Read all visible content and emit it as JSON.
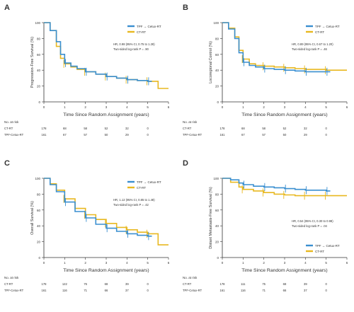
{
  "colors": {
    "tpf": "#3a8fd0",
    "ct": "#e8b820",
    "axis": "#333333",
    "text": "#333333"
  },
  "chart_data": [
    {
      "type": "line",
      "panel_label": "A",
      "ylabel": "Progression-Free Survival (%)",
      "xlabel": "Time Since Random Assignment (years)",
      "xlim": [
        0,
        6
      ],
      "ylim": [
        0,
        100
      ],
      "x_ticks": [
        0,
        1,
        2,
        3,
        4,
        5,
        6
      ],
      "y_ticks": [
        0,
        20,
        40,
        60,
        80,
        100
      ],
      "legend": [
        "TPF → Cetux-RT",
        "CT-RT"
      ],
      "legend_position": "top-right",
      "annotation": [
        "HR, 0.98 (95% CI, 0.75 to 1.28)",
        "Two-sided log-rank P = .90"
      ],
      "series": [
        {
          "name": "TPF → Cetux-RT",
          "x": [
            0,
            0.3,
            0.6,
            0.8,
            1.0,
            1.3,
            1.6,
            2.0,
            2.5,
            3.0,
            3.5,
            4.0,
            4.5,
            5.0,
            5.2
          ],
          "y": [
            100,
            90,
            76,
            60,
            49,
            45,
            42,
            38,
            35,
            32,
            30,
            28,
            27,
            26,
            26
          ]
        },
        {
          "name": "CT-RT",
          "x": [
            0,
            0.3,
            0.6,
            0.8,
            1.0,
            1.3,
            1.6,
            2.0,
            2.5,
            3.0,
            3.5,
            4.0,
            4.5,
            5.0,
            5.5,
            6.0
          ],
          "y": [
            100,
            90,
            70,
            55,
            48,
            44,
            41,
            38,
            35,
            32,
            30,
            28,
            27,
            26,
            17,
            17
          ]
        }
      ],
      "at_risk": {
        "header": "No. at risk",
        "rows": [
          {
            "label": "CT-RT",
            "values": [
              "178",
              "68",
              "58",
              "52",
              "32",
              "0"
            ]
          },
          {
            "label": "TPF-Cetux-RT",
            "values": [
              "161",
              "67",
              "57",
              "50",
              "29",
              "0"
            ]
          }
        ]
      }
    },
    {
      "type": "line",
      "panel_label": "B",
      "ylabel": "Locoregional Control (%)",
      "xlabel": "Time Since Random Assignment (years)",
      "xlim": [
        0,
        6
      ],
      "ylim": [
        0,
        100
      ],
      "x_ticks": [
        0,
        1,
        2,
        3,
        4,
        5,
        6
      ],
      "y_ticks": [
        0,
        20,
        40,
        60,
        80,
        100
      ],
      "legend": [
        "TPF → Cetux-RT",
        "CT-RT"
      ],
      "legend_position": "top-right",
      "annotation": [
        "HR, 0.89 (95% CI, 0.67 to 1.20)",
        "Two-sided log-rank P = .46"
      ],
      "series": [
        {
          "name": "TPF → Cetux-RT",
          "x": [
            0,
            0.3,
            0.6,
            0.8,
            1.0,
            1.3,
            1.6,
            2.0,
            2.5,
            3.0,
            3.5,
            4.0,
            4.5,
            5.0,
            5.2
          ],
          "y": [
            100,
            92,
            80,
            62,
            50,
            46,
            44,
            42,
            41,
            40,
            39,
            38,
            38,
            38,
            38
          ]
        },
        {
          "name": "CT-RT",
          "x": [
            0,
            0.3,
            0.6,
            0.8,
            1.0,
            1.3,
            1.6,
            2.0,
            2.5,
            3.0,
            3.5,
            4.0,
            4.5,
            5.0,
            5.5,
            6.0
          ],
          "y": [
            100,
            93,
            82,
            65,
            54,
            48,
            46,
            45,
            44,
            43,
            42,
            41,
            41,
            40,
            40,
            40
          ]
        }
      ],
      "at_risk": {
        "header": "No. at risk",
        "rows": [
          {
            "label": "CT-RT",
            "values": [
              "178",
              "68",
              "58",
              "52",
              "32",
              "0"
            ]
          },
          {
            "label": "TPF-Cetux-RT",
            "values": [
              "161",
              "67",
              "57",
              "50",
              "29",
              "0"
            ]
          }
        ]
      }
    },
    {
      "type": "line",
      "panel_label": "C",
      "ylabel": "Overall Survival (%)",
      "xlabel": "Time Since Random Assignment (years)",
      "xlim": [
        0,
        6
      ],
      "ylim": [
        0,
        100
      ],
      "x_ticks": [
        0,
        1,
        2,
        3,
        4,
        5,
        6
      ],
      "y_ticks": [
        0,
        20,
        40,
        60,
        80,
        100
      ],
      "legend": [
        "TPF → Cetux-RT",
        "CT-RT"
      ],
      "legend_position": "top-right",
      "annotation": [
        "HR, 1.12 (95% CI, 0.85 to 1.48)",
        "Two-sided log-rank P = .42"
      ],
      "series": [
        {
          "name": "TPF → Cetux-RT",
          "x": [
            0,
            0.3,
            0.6,
            1.0,
            1.5,
            2.0,
            2.5,
            3.0,
            3.5,
            4.0,
            4.5,
            5.0,
            5.2
          ],
          "y": [
            100,
            92,
            83,
            70,
            58,
            50,
            42,
            37,
            33,
            30,
            28,
            27,
            27
          ]
        },
        {
          "name": "CT-RT",
          "x": [
            0,
            0.3,
            0.6,
            1.0,
            1.5,
            2.0,
            2.5,
            3.0,
            3.5,
            4.0,
            4.5,
            5.0,
            5.5,
            6.0
          ],
          "y": [
            100,
            93,
            85,
            74,
            62,
            54,
            48,
            43,
            38,
            35,
            32,
            30,
            16,
            16
          ]
        }
      ],
      "at_risk": {
        "header": "No. at risk",
        "rows": [
          {
            "label": "CT-RT",
            "values": [
              "178",
              "122",
              "76",
              "68",
              "39",
              "0"
            ]
          },
          {
            "label": "TPF-Cetux-RT",
            "values": [
              "161",
              "116",
              "71",
              "66",
              "37",
              "0"
            ]
          }
        ]
      }
    },
    {
      "type": "line",
      "panel_label": "D",
      "ylabel": "Distant Metastasis-Free Survival (%)",
      "xlabel": "Time Since Random Assignment (years)",
      "xlim": [
        0,
        6
      ],
      "ylim": [
        0,
        100
      ],
      "x_ticks": [
        0,
        1,
        2,
        3,
        4,
        5,
        6
      ],
      "y_ticks": [
        0,
        20,
        40,
        60,
        80,
        100
      ],
      "legend": [
        "TPF → Cetux-RT",
        "CT-RT"
      ],
      "legend_position": "bottom-right",
      "annotation": [
        "HR, 0.54 (95% CI, 0.30 to 0.98)",
        "Two-sided log-rank P = .04"
      ],
      "series": [
        {
          "name": "TPF → Cetux-RT",
          "x": [
            0,
            0.4,
            0.8,
            1.0,
            1.5,
            2.0,
            2.5,
            3.0,
            3.5,
            4.0,
            4.5,
            5.0,
            5.2
          ],
          "y": [
            100,
            98,
            94,
            92,
            90,
            89,
            88,
            87,
            86,
            85,
            85,
            84,
            84
          ]
        },
        {
          "name": "CT-RT",
          "x": [
            0,
            0.4,
            0.8,
            1.0,
            1.5,
            2.0,
            2.5,
            3.0,
            3.5,
            4.0,
            4.5,
            5.0,
            5.5,
            6.0
          ],
          "y": [
            100,
            95,
            89,
            86,
            84,
            82,
            80,
            79,
            78,
            78,
            78,
            78,
            78,
            78
          ]
        }
      ],
      "at_risk": {
        "header": "No. at risk",
        "rows": [
          {
            "label": "CT-RT",
            "values": [
              "178",
              "111",
              "75",
              "68",
              "39",
              "0"
            ]
          },
          {
            "label": "TPF-Cetux-RT",
            "values": [
              "161",
              "116",
              "71",
              "66",
              "37",
              "0"
            ]
          }
        ]
      }
    }
  ]
}
